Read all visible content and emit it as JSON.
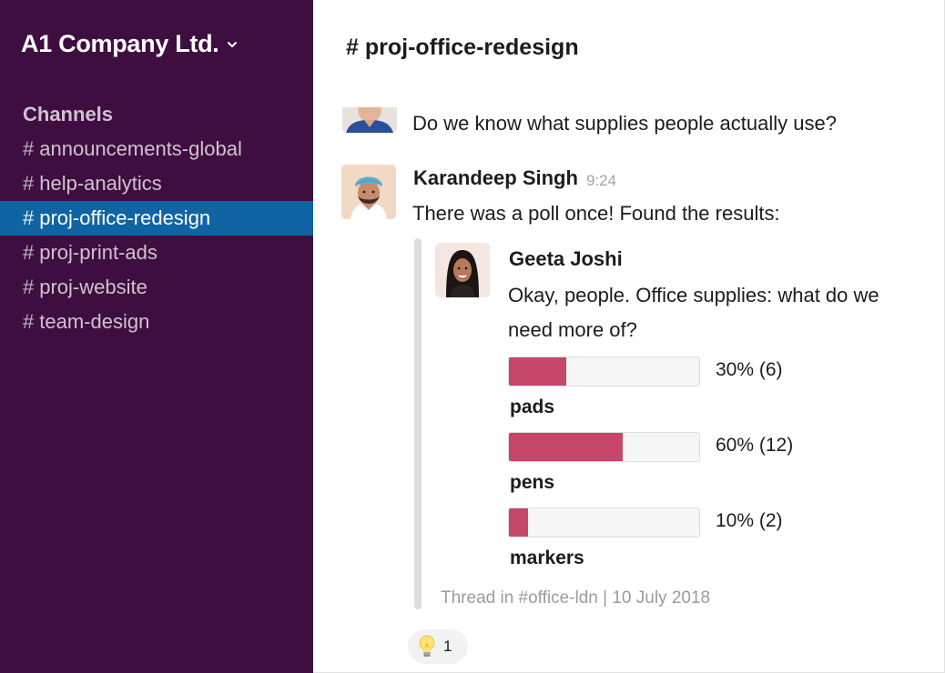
{
  "workspace": {
    "name": "A1 Company Ltd.",
    "menu_icon": "chevron-down-icon"
  },
  "sidebar": {
    "heading": "Channels",
    "channels": [
      {
        "hash": "#",
        "name": "announcements-global",
        "active": false
      },
      {
        "hash": "#",
        "name": "help-analytics",
        "active": false
      },
      {
        "hash": "#",
        "name": "proj-office-redesign",
        "active": true
      },
      {
        "hash": "#",
        "name": "proj-print-ads",
        "active": false
      },
      {
        "hash": "#",
        "name": "proj-website",
        "active": false
      },
      {
        "hash": "#",
        "name": "team-design",
        "active": false
      }
    ]
  },
  "header": {
    "title": "# proj-office-redesign"
  },
  "messages": [
    {
      "text": "Do we know what supplies people actually use?"
    },
    {
      "author": "Karandeep Singh",
      "time": "9:24",
      "text": "There was a poll once! Found the results:"
    }
  ],
  "shared": {
    "author": "Geeta Joshi",
    "text": "Okay, people. Office supplies: what do we need more of?",
    "poll": [
      {
        "label": "pads",
        "result": "30% (6)",
        "percent": 30
      },
      {
        "label": "pens",
        "result": "60% (12)",
        "percent": 60
      },
      {
        "label": "markers",
        "result": "10% (2)",
        "percent": 10
      }
    ],
    "meta": "Thread in #office-ldn | 10 July 2018"
  },
  "reaction": {
    "emoji": "lightbulb-icon",
    "count": "1"
  },
  "colors": {
    "sidebar_bg": "#3f0e40",
    "active_channel": "#1164a3",
    "poll_fill": "#c6476a"
  }
}
